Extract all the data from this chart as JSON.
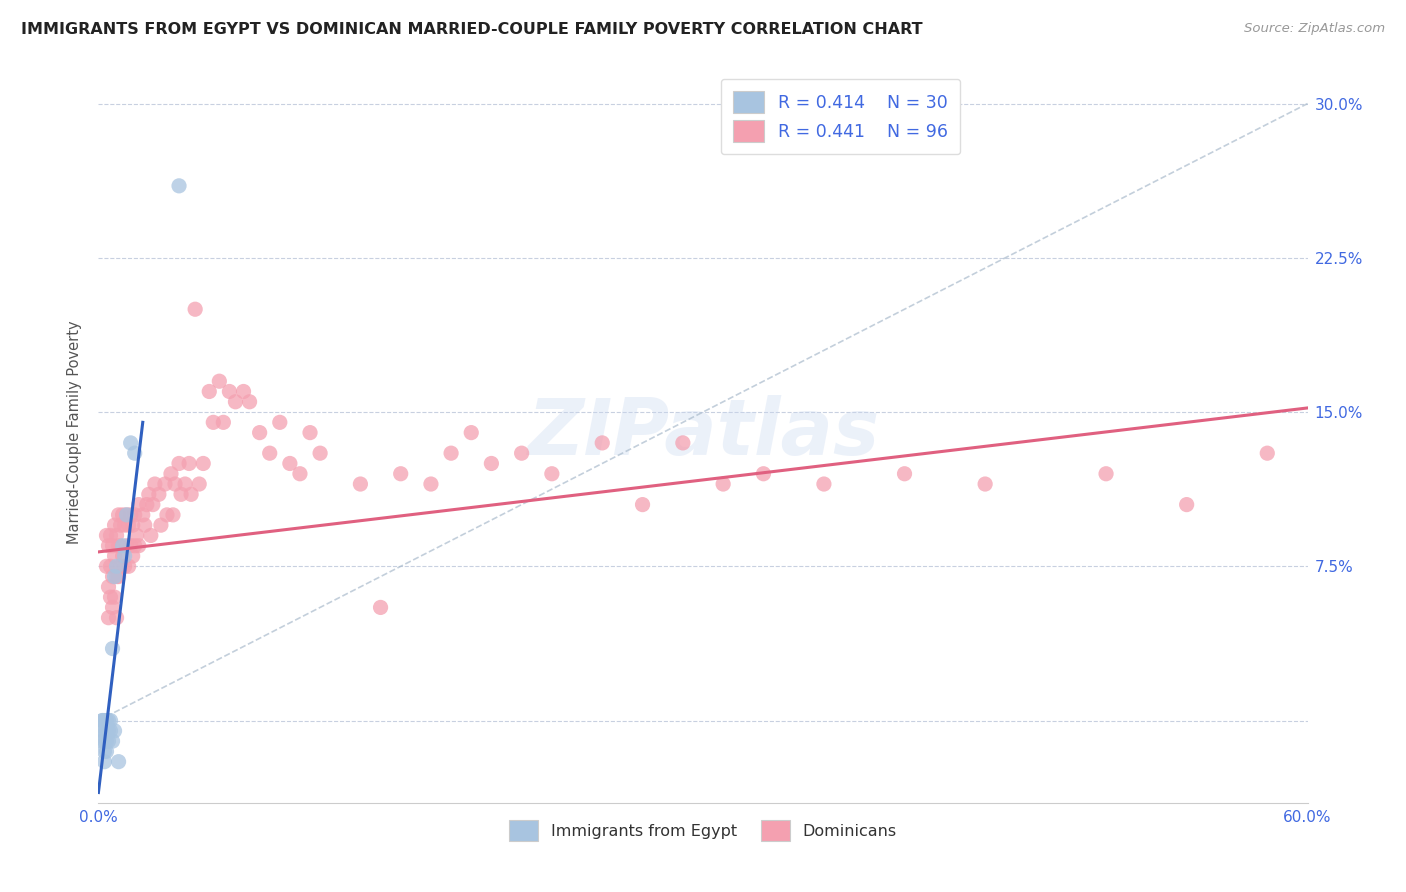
{
  "title": "IMMIGRANTS FROM EGYPT VS DOMINICAN MARRIED-COUPLE FAMILY POVERTY CORRELATION CHART",
  "source": "Source: ZipAtlas.com",
  "ylabel": "Married-Couple Family Poverty",
  "xlim": [
    0.0,
    0.6
  ],
  "ylim": [
    -0.04,
    0.32
  ],
  "xticks": [
    0.0,
    0.1,
    0.2,
    0.3,
    0.4,
    0.5,
    0.6
  ],
  "xticklabels": [
    "0.0%",
    "",
    "",
    "",
    "",
    "",
    "60.0%"
  ],
  "yticks": [
    0.0,
    0.075,
    0.15,
    0.225,
    0.3
  ],
  "yticklabels": [
    "",
    "7.5%",
    "15.0%",
    "22.5%",
    "30.0%"
  ],
  "watermark": "ZIPatlas",
  "legend_R1": "R = 0.414",
  "legend_N1": "N = 30",
  "legend_R2": "R = 0.441",
  "legend_N2": "N = 96",
  "egypt_color": "#a8c4e0",
  "dominican_color": "#f4a0b0",
  "egypt_line_color": "#3060c0",
  "dominican_line_color": "#e06080",
  "egypt_scatter": [
    [
      0.002,
      0.0
    ],
    [
      0.002,
      0.0
    ],
    [
      0.002,
      -0.005
    ],
    [
      0.002,
      -0.01
    ],
    [
      0.003,
      0.0
    ],
    [
      0.003,
      -0.005
    ],
    [
      0.003,
      -0.01
    ],
    [
      0.003,
      -0.015
    ],
    [
      0.003,
      -0.02
    ],
    [
      0.004,
      0.0
    ],
    [
      0.004,
      -0.005
    ],
    [
      0.004,
      -0.01
    ],
    [
      0.004,
      -0.015
    ],
    [
      0.005,
      0.0
    ],
    [
      0.005,
      -0.005
    ],
    [
      0.005,
      -0.01
    ],
    [
      0.006,
      0.0
    ],
    [
      0.006,
      -0.005
    ],
    [
      0.007,
      0.035
    ],
    [
      0.007,
      -0.01
    ],
    [
      0.008,
      0.07
    ],
    [
      0.008,
      -0.005
    ],
    [
      0.009,
      0.075
    ],
    [
      0.01,
      -0.02
    ],
    [
      0.012,
      0.085
    ],
    [
      0.013,
      0.08
    ],
    [
      0.014,
      0.1
    ],
    [
      0.016,
      0.135
    ],
    [
      0.018,
      0.13
    ],
    [
      0.04,
      0.26
    ]
  ],
  "dominican_scatter": [
    [
      0.004,
      0.09
    ],
    [
      0.004,
      0.075
    ],
    [
      0.005,
      0.085
    ],
    [
      0.005,
      0.065
    ],
    [
      0.005,
      0.05
    ],
    [
      0.006,
      0.09
    ],
    [
      0.006,
      0.075
    ],
    [
      0.006,
      0.06
    ],
    [
      0.007,
      0.085
    ],
    [
      0.007,
      0.07
    ],
    [
      0.007,
      0.055
    ],
    [
      0.008,
      0.095
    ],
    [
      0.008,
      0.08
    ],
    [
      0.008,
      0.06
    ],
    [
      0.009,
      0.09
    ],
    [
      0.009,
      0.07
    ],
    [
      0.009,
      0.05
    ],
    [
      0.01,
      0.1
    ],
    [
      0.01,
      0.085
    ],
    [
      0.01,
      0.07
    ],
    [
      0.011,
      0.095
    ],
    [
      0.011,
      0.075
    ],
    [
      0.012,
      0.1
    ],
    [
      0.012,
      0.08
    ],
    [
      0.013,
      0.095
    ],
    [
      0.013,
      0.075
    ],
    [
      0.014,
      0.1
    ],
    [
      0.014,
      0.085
    ],
    [
      0.015,
      0.095
    ],
    [
      0.015,
      0.075
    ],
    [
      0.016,
      0.1
    ],
    [
      0.016,
      0.085
    ],
    [
      0.017,
      0.095
    ],
    [
      0.017,
      0.08
    ],
    [
      0.018,
      0.1
    ],
    [
      0.018,
      0.085
    ],
    [
      0.019,
      0.09
    ],
    [
      0.02,
      0.105
    ],
    [
      0.02,
      0.085
    ],
    [
      0.022,
      0.1
    ],
    [
      0.023,
      0.095
    ],
    [
      0.024,
      0.105
    ],
    [
      0.025,
      0.11
    ],
    [
      0.026,
      0.09
    ],
    [
      0.027,
      0.105
    ],
    [
      0.028,
      0.115
    ],
    [
      0.03,
      0.11
    ],
    [
      0.031,
      0.095
    ],
    [
      0.033,
      0.115
    ],
    [
      0.034,
      0.1
    ],
    [
      0.036,
      0.12
    ],
    [
      0.037,
      0.1
    ],
    [
      0.038,
      0.115
    ],
    [
      0.04,
      0.125
    ],
    [
      0.041,
      0.11
    ],
    [
      0.043,
      0.115
    ],
    [
      0.045,
      0.125
    ],
    [
      0.046,
      0.11
    ],
    [
      0.048,
      0.2
    ],
    [
      0.05,
      0.115
    ],
    [
      0.052,
      0.125
    ],
    [
      0.055,
      0.16
    ],
    [
      0.057,
      0.145
    ],
    [
      0.06,
      0.165
    ],
    [
      0.062,
      0.145
    ],
    [
      0.065,
      0.16
    ],
    [
      0.068,
      0.155
    ],
    [
      0.072,
      0.16
    ],
    [
      0.075,
      0.155
    ],
    [
      0.08,
      0.14
    ],
    [
      0.085,
      0.13
    ],
    [
      0.09,
      0.145
    ],
    [
      0.095,
      0.125
    ],
    [
      0.1,
      0.12
    ],
    [
      0.105,
      0.14
    ],
    [
      0.11,
      0.13
    ],
    [
      0.13,
      0.115
    ],
    [
      0.14,
      0.055
    ],
    [
      0.15,
      0.12
    ],
    [
      0.165,
      0.115
    ],
    [
      0.175,
      0.13
    ],
    [
      0.185,
      0.14
    ],
    [
      0.195,
      0.125
    ],
    [
      0.21,
      0.13
    ],
    [
      0.225,
      0.12
    ],
    [
      0.25,
      0.135
    ],
    [
      0.27,
      0.105
    ],
    [
      0.29,
      0.135
    ],
    [
      0.31,
      0.115
    ],
    [
      0.33,
      0.12
    ],
    [
      0.36,
      0.115
    ],
    [
      0.4,
      0.12
    ],
    [
      0.44,
      0.115
    ],
    [
      0.5,
      0.12
    ],
    [
      0.54,
      0.105
    ],
    [
      0.58,
      0.13
    ]
  ],
  "egypt_trend_x": [
    0.0,
    0.022
  ],
  "egypt_trend_y": [
    -0.035,
    0.145
  ],
  "dominican_trend_x": [
    0.0,
    0.6
  ],
  "dominican_trend_y": [
    0.082,
    0.152
  ],
  "dashed_line_x": [
    0.0,
    0.6
  ],
  "dashed_line_y": [
    0.0,
    0.3
  ]
}
